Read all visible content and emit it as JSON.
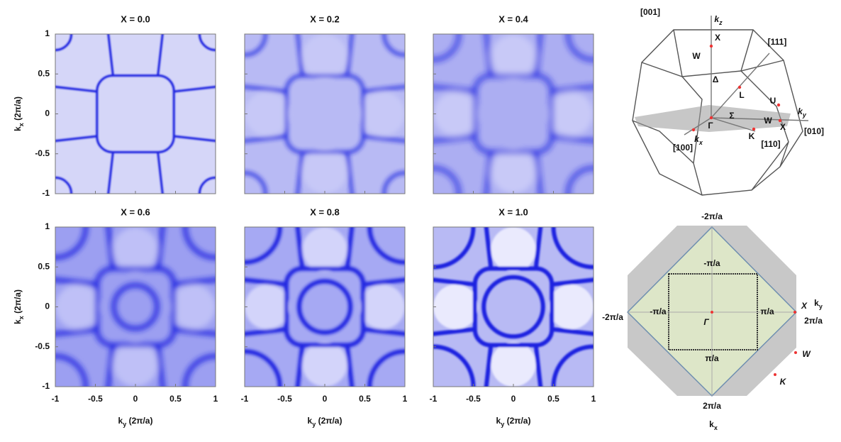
{
  "panels": [
    {
      "title": "X = 0.0"
    },
    {
      "title": "X = 0.2"
    },
    {
      "title": "X = 0.4"
    },
    {
      "title": "X = 0.6"
    },
    {
      "title": "X = 0.8"
    },
    {
      "title": "X = 1.0"
    }
  ],
  "axes": {
    "xlim": [
      -1,
      1
    ],
    "ylim": [
      -1,
      1
    ],
    "xticks": [
      -1,
      -0.5,
      0,
      0.5,
      1
    ],
    "yticks": [
      -1,
      -0.5,
      0,
      0.5,
      1
    ],
    "xlabel": {
      "main": "k",
      "sub": "y",
      "unit": "(2π/a)"
    },
    "ylabel": {
      "main": "k",
      "sub": "x",
      "unit": "(2π/a)"
    }
  },
  "bz3d": {
    "labels": [
      "[001]",
      "X",
      "W",
      "[111]",
      "Δ",
      "L",
      "U",
      "Γ",
      "Σ",
      "W",
      "X",
      "[010]",
      "K",
      "[110]",
      "[100]"
    ],
    "kz": {
      "main": "k",
      "sub": "z"
    },
    "ky": {
      "main": "k",
      "sub": "y"
    },
    "kx": {
      "main": "k",
      "sub": "x"
    }
  },
  "bz2d": {
    "top": "-2π/a",
    "top_inner": "-π/a",
    "left": "-2π/a",
    "left_inner": "-π/a",
    "right_inner": "π/a",
    "X": "X",
    "ky": {
      "main": "k",
      "sub": "y"
    },
    "right": "2π/a",
    "gamma": "Γ",
    "bottom_inner": "π/a",
    "W": "W",
    "K": "K",
    "bottom": "2π/a",
    "kx": {
      "main": "k",
      "sub": "x"
    }
  }
}
